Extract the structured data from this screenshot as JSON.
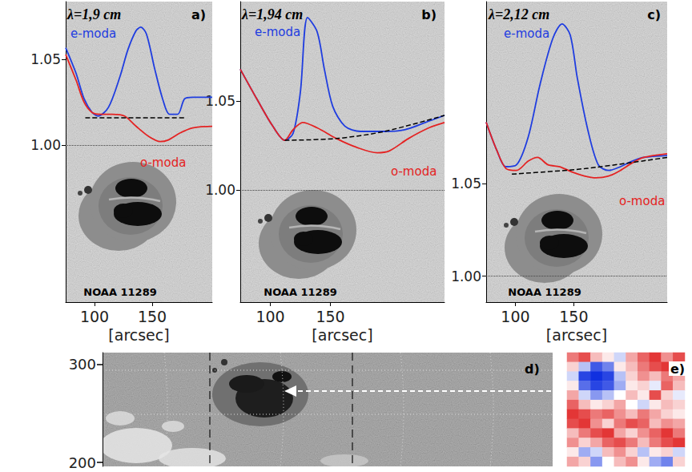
{
  "chart_data": [
    {
      "type": "line",
      "panel_label": "a)",
      "title": "λ=1,9 cm",
      "annotation": "NOAA 11289",
      "x_label": "[arcsec]",
      "xlim": [
        75,
        202
      ],
      "xticks": [
        100,
        150
      ],
      "ylim": [
        0.908,
        1.084
      ],
      "yticks": [
        {
          "value": 1,
          "label": "1.00"
        },
        {
          "value": 1.05,
          "label": "1.05"
        }
      ],
      "hline": 1,
      "series": [
        {
          "name": "e-moda",
          "color": "#1f3de0",
          "line_style": "solid",
          "x": [
            75,
            84,
            91,
            98,
            103,
            112,
            122,
            129,
            136,
            140,
            145,
            152,
            159,
            165,
            172,
            178,
            185,
            202
          ],
          "values": [
            1.057,
            1.042,
            1.027,
            1.019,
            1.017,
            1.022,
            1.04,
            1.056,
            1.067,
            1.069,
            1.065,
            1.045,
            1.027,
            1.018,
            1.018,
            1.027,
            1.028,
            1.028
          ]
        },
        {
          "name": "o-moda",
          "color": "#e42323",
          "line_style": "solid",
          "x": [
            75,
            84,
            91,
            98,
            105,
            115,
            126,
            136,
            147,
            157,
            164,
            174,
            185,
            202
          ],
          "values": [
            1.053,
            1.038,
            1.025,
            1.019,
            1.018,
            1.018,
            1.017,
            1.011,
            1.005,
            1.002,
            1.003,
            1.007,
            1.01,
            1.011
          ]
        },
        {
          "color": "#000000",
          "line_style": "dashed",
          "x": [
            92,
            178
          ],
          "values": [
            1.016,
            1.016
          ]
        }
      ]
    },
    {
      "type": "line",
      "panel_label": "b)",
      "title": "λ=1,94 cm",
      "annotation": "NOAA 11289",
      "x_label": "[arcsec]",
      "xlim": [
        75,
        245
      ],
      "xticks": [
        100,
        150
      ],
      "ylim": [
        0.937,
        1.106
      ],
      "yticks": [
        {
          "value": 1,
          "label": "1.00"
        },
        {
          "value": 1.05,
          "label": "1.05"
        }
      ],
      "hline": 1,
      "series": [
        {
          "name": "e-moda",
          "color": "#1f3de0",
          "line_style": "solid",
          "x": [
            75,
            89,
            102,
            112,
            119,
            125,
            131,
            139,
            145,
            152,
            162,
            175,
            195,
            212,
            229,
            245
          ],
          "values": [
            1.068,
            1.051,
            1.036,
            1.028,
            1.032,
            1.055,
            1.097,
            1.089,
            1.068,
            1.047,
            1.036,
            1.033,
            1.033,
            1.034,
            1.038,
            1.042
          ]
        },
        {
          "name": "o-moda",
          "color": "#e42323",
          "line_style": "solid",
          "x": [
            75,
            89,
            102,
            112,
            119,
            127,
            139,
            155,
            172,
            189,
            199,
            215,
            232,
            245
          ],
          "values": [
            1.068,
            1.051,
            1.036,
            1.028,
            1.034,
            1.038,
            1.035,
            1.029,
            1.024,
            1.021,
            1.022,
            1.029,
            1.035,
            1.038
          ]
        },
        {
          "color": "#000000",
          "line_style": "dashed",
          "x": [
            112,
            155,
            195,
            245
          ],
          "values": [
            1.028,
            1.029,
            1.033,
            1.042
          ]
        }
      ]
    },
    {
      "type": "line",
      "panel_label": "c)",
      "title": "λ=2,12 cm",
      "annotation": "NOAA 11289",
      "x_label": "[arcsec]",
      "xlim": [
        75,
        230
      ],
      "xticks": [
        100,
        150
      ],
      "ylim": [
        0.986,
        1.148
      ],
      "yticks": [
        {
          "value": 1,
          "label": "1.00"
        },
        {
          "value": 1.05,
          "label": "1.05"
        }
      ],
      "hline": 1,
      "series": [
        {
          "name": "e-moda",
          "color": "#1f3de0",
          "line_style": "solid",
          "x": [
            75,
            84,
            92,
            101,
            111,
            121,
            132,
            140,
            147,
            153,
            162,
            171,
            180,
            190,
            200,
            210,
            230
          ],
          "values": [
            1.083,
            1.068,
            1.059,
            1.06,
            1.075,
            1.103,
            1.128,
            1.136,
            1.13,
            1.107,
            1.079,
            1.06,
            1.057,
            1.059,
            1.062,
            1.064,
            1.065
          ]
        },
        {
          "name": "o-moda",
          "color": "#e42323",
          "line_style": "solid",
          "x": [
            75,
            84,
            92,
            101,
            111,
            119,
            128,
            138,
            149,
            159,
            169,
            180,
            190,
            200,
            210,
            230
          ],
          "values": [
            1.083,
            1.068,
            1.058,
            1.057,
            1.062,
            1.064,
            1.06,
            1.059,
            1.056,
            1.054,
            1.053,
            1.054,
            1.057,
            1.061,
            1.064,
            1.066
          ]
        },
        {
          "color": "#000000",
          "line_style": "dashed",
          "x": [
            97,
            160,
            230
          ],
          "values": [
            1.055,
            1.058,
            1.064
          ]
        }
      ]
    },
    {
      "type": "image",
      "panel_label": "d)",
      "ylim": [
        196,
        312
      ],
      "yticks": [
        200,
        300
      ],
      "tick_labels": "y"
    },
    {
      "type": "heatmap",
      "panel_label": "e)",
      "tick_labels": false,
      "color_range": [
        -1,
        1
      ],
      "cells": [
        [
          0.6,
          0.8,
          0.3,
          0.1,
          -0.2,
          0.4,
          0.7,
          0.9,
          0.5,
          0.8
        ],
        [
          0.2,
          -0.3,
          -0.8,
          -0.6,
          0.1,
          0.3,
          0.6,
          0.8,
          0.9,
          0.7
        ],
        [
          -0.2,
          -0.9,
          -1.0,
          -0.9,
          -0.3,
          0.2,
          0.5,
          0.3,
          0.6,
          0.4
        ],
        [
          0.1,
          -0.7,
          -0.9,
          -0.8,
          -0.4,
          0.1,
          0.2,
          -0.1,
          0.7,
          0.3
        ],
        [
          0.4,
          -0.2,
          -0.5,
          -0.3,
          0.0,
          0.3,
          0.1,
          0.8,
          0.2,
          -0.1
        ],
        [
          0.7,
          0.3,
          0.1,
          0.2,
          0.4,
          0.0,
          -0.2,
          0.1,
          0.3,
          0.2
        ],
        [
          0.9,
          0.8,
          0.6,
          0.7,
          0.5,
          0.3,
          0.6,
          0.4,
          0.2,
          0.1
        ],
        [
          0.8,
          0.9,
          0.5,
          0.2,
          0.6,
          0.8,
          0.7,
          0.3,
          0.5,
          0.4
        ],
        [
          0.3,
          0.6,
          0.8,
          0.9,
          0.4,
          0.2,
          0.5,
          0.7,
          0.9,
          0.6
        ],
        [
          0.5,
          0.2,
          0.4,
          0.7,
          0.8,
          0.6,
          0.3,
          0.6,
          0.8,
          0.9
        ],
        [
          0.1,
          -0.4,
          -0.2,
          0.3,
          0.5,
          0.2,
          -0.3,
          0.1,
          0.2,
          -0.2
        ],
        [
          0.4,
          0.2,
          -0.5,
          0.0,
          0.3,
          0.5,
          0.1,
          -0.4,
          -0.6,
          0.2
        ]
      ]
    }
  ]
}
